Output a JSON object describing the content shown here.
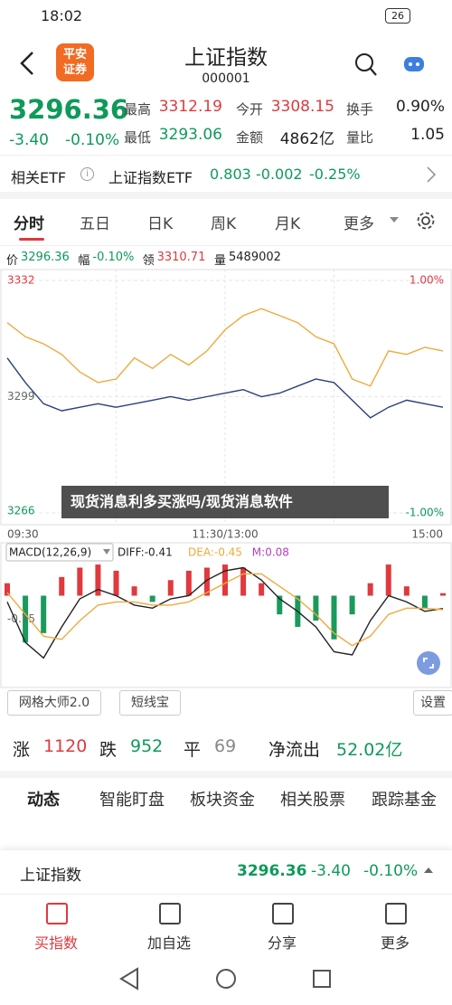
{
  "status_bar": {
    "time": "18:02",
    "battery": "26"
  },
  "header": {
    "logo": [
      "平安",
      "证券"
    ],
    "title": "上证指数",
    "code": "000001"
  },
  "quote": {
    "price": "3296.36",
    "change": "-3.40",
    "change_pct": "-0.10%",
    "color": "#0e9a5a",
    "stats": [
      {
        "label": "最高",
        "value": "3312.19",
        "color": "#e0393e"
      },
      {
        "label": "今开",
        "value": "3308.15",
        "color": "#e0393e"
      },
      {
        "label": "换手",
        "value": "0.90%",
        "color": "#222222"
      },
      {
        "label": "最低",
        "value": "3293.06",
        "color": "#0e9a5a"
      },
      {
        "label": "金额",
        "value": "4862亿",
        "color": "#222222"
      },
      {
        "label": "量比",
        "value": "1.05",
        "color": "#222222"
      }
    ]
  },
  "etf": {
    "label": "相关ETF",
    "name": "上证指数ETF",
    "price": "0.803",
    "change": "-0.002",
    "change_pct": "-0.25%"
  },
  "period_tabs": [
    "分时",
    "五日",
    "日K",
    "周K",
    "月K",
    "更多"
  ],
  "info": [
    {
      "label": "价",
      "value": "3296.36"
    },
    {
      "label": "幅",
      "value": "-0.10%"
    },
    {
      "label": "领",
      "value": "3310.71"
    },
    {
      "label": "量",
      "value": "5489002"
    }
  ],
  "chart_data": [
    {
      "type": "line",
      "x": [
        0,
        1,
        2,
        3,
        4,
        5,
        6,
        7,
        8,
        9,
        10,
        11,
        12,
        13,
        14,
        15,
        16,
        17,
        18,
        19,
        20,
        21,
        22,
        23,
        24
      ],
      "xlim": [
        0,
        24
      ],
      "xticks": [
        {
          "value": 0,
          "label": "09:30"
        },
        {
          "value": 12,
          "label": "11:30/13:00"
        },
        {
          "value": 24,
          "label": "15:00"
        }
      ],
      "ylim": [
        3266,
        3332
      ],
      "yticks": [
        3332,
        3299,
        3266
      ],
      "y2lim": [
        -1,
        1
      ],
      "y2ticks": [
        {
          "value": 1,
          "label": "1.00%"
        },
        {
          "value": -1,
          "label": "-1.00%"
        }
      ],
      "series": [
        {
          "color": "#f0a93b",
          "values": [
            3320,
            3316,
            3314,
            3311,
            3306,
            3303,
            3304,
            3310,
            3307,
            3311,
            3308,
            3312,
            3318,
            3322,
            3324,
            3322,
            3320,
            3316,
            3314,
            3304,
            3302,
            3312,
            3311,
            3313,
            3312
          ]
        },
        {
          "color": "#2b3f7a",
          "values": [
            3310,
            3303,
            3297,
            3295,
            3296,
            3297,
            3296,
            3297,
            3298,
            3299,
            3298,
            3299,
            3300,
            3301,
            3299,
            3300,
            3302,
            3304,
            3303,
            3298,
            3293,
            3296,
            3298,
            3297,
            3296
          ]
        }
      ]
    },
    {
      "type": "macd",
      "title": "MACD(12,26,9)",
      "x": [
        0,
        1,
        2,
        3,
        4,
        5,
        6,
        7,
        8,
        9,
        10,
        11,
        12,
        13,
        14,
        15,
        16,
        17,
        18,
        19,
        20,
        21,
        22,
        23,
        24
      ],
      "xlim": [
        0,
        24
      ],
      "ylim": [
        -2.8,
        1.06
      ],
      "yticks": [
        -0.75
      ],
      "indicators": [
        {
          "text": "DIFF:-0.41",
          "color": "#222222"
        },
        {
          "text": "DEA:-0.45",
          "color": "#f0a93b"
        },
        {
          "text": "M:0.08",
          "color": "#b23fc4"
        }
      ],
      "up_color": "#e0393e",
      "down_color": "#1a9a5b",
      "histogram": [
        0.4,
        -1.5,
        -1.2,
        0.6,
        0.9,
        1.0,
        0.8,
        0.3,
        -0.2,
        0.5,
        0.8,
        0.9,
        1.0,
        0.9,
        0.4,
        -0.6,
        -1.0,
        -0.8,
        -1.4,
        -0.6,
        0.4,
        1.0,
        0.3,
        -0.4,
        0.08
      ],
      "series": [
        {
          "color": "#222222",
          "values": [
            -0.2,
            -1.5,
            -2.0,
            -1.0,
            -0.1,
            0.2,
            0.0,
            -0.3,
            -0.4,
            -0.1,
            0.0,
            0.5,
            0.8,
            0.9,
            0.5,
            -0.1,
            -0.5,
            -1.0,
            -1.8,
            -1.9,
            -0.8,
            0.0,
            -0.2,
            -0.5,
            -0.41
          ]
        },
        {
          "color": "#f0a93b",
          "values": [
            0.1,
            -0.6,
            -1.3,
            -1.4,
            -0.8,
            -0.3,
            -0.2,
            -0.2,
            -0.3,
            -0.3,
            -0.2,
            0.1,
            0.4,
            0.7,
            0.7,
            0.3,
            -0.1,
            -0.6,
            -1.2,
            -1.6,
            -1.3,
            -0.6,
            -0.4,
            -0.4,
            -0.45
          ]
        }
      ]
    }
  ],
  "watermark": "现货消息利多买涨吗/现货消息软件",
  "tools": [
    "网格大师2.0",
    "短线宝",
    "设置"
  ],
  "breadth": [
    {
      "label": "涨",
      "value": "1120",
      "color": "#e0393e"
    },
    {
      "label": "跌",
      "value": "952",
      "color": "#0e9a5a"
    },
    {
      "label": "平",
      "value": "69",
      "color": "#888888"
    },
    {
      "label": "净流出",
      "value": "52.02亿",
      "color": "#0e9a5a"
    }
  ],
  "news_tabs": [
    "动态",
    "智能盯盘",
    "板块资金",
    "相关股票",
    "跟踪基金"
  ],
  "ticker_bar": {
    "name": "上证指数",
    "price": "3296.36",
    "change": "-3.40",
    "change_pct": "-0.10%"
  },
  "actions": [
    "买指数",
    "加自选",
    "分享",
    "更多"
  ]
}
